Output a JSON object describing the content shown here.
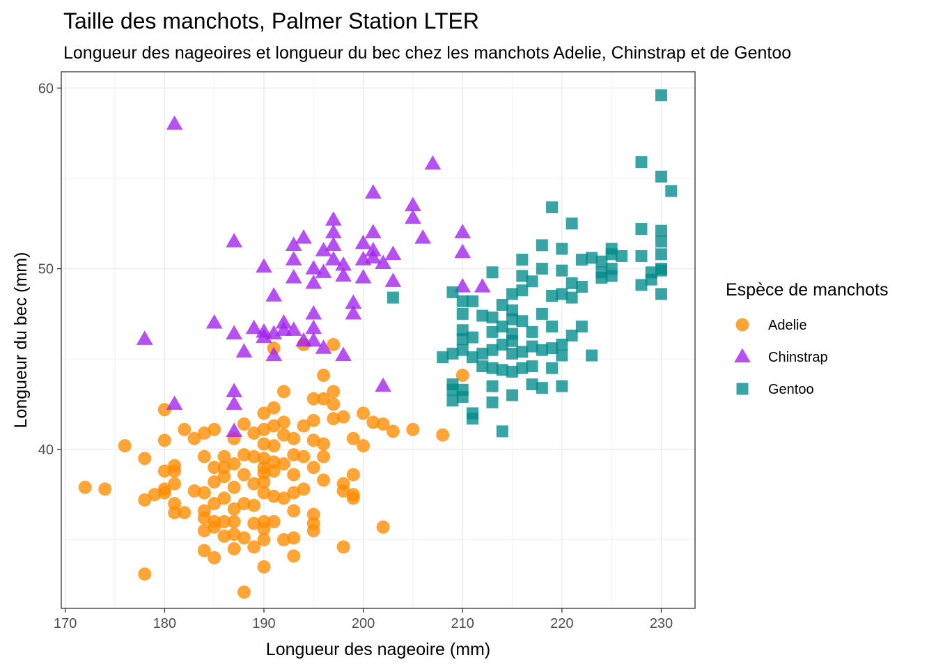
{
  "chart_data": {
    "type": "scatter",
    "title": "Taille des manchots, Palmer Station LTER",
    "subtitle": "Longueur des nageoires et longueur du bec chez les manchots Adelie, Chinstrap et de Gentoo",
    "xlabel": "Longueur des nageoire (mm)",
    "ylabel": "Longueur du bec (mm)",
    "xlim": [
      169.6,
      233.4
    ],
    "ylim": [
      31.2,
      60.9
    ],
    "x_ticks": [
      "170",
      "180",
      "190",
      "200",
      "210",
      "220",
      "230"
    ],
    "y_ticks": [
      "40",
      "50",
      "60"
    ],
    "grid": true,
    "legend": {
      "title": "Espèce de manchots",
      "position": "right"
    },
    "series": [
      {
        "name": "Adelie",
        "color": "#FF8C00",
        "shape": "circle",
        "points": [
          [
            172,
            37.9
          ],
          [
            174,
            37.8
          ],
          [
            176,
            40.2
          ],
          [
            178,
            39.5
          ],
          [
            178,
            37.2
          ],
          [
            178,
            33.1
          ],
          [
            179,
            37.5
          ],
          [
            180,
            42.2
          ],
          [
            180,
            40.5
          ],
          [
            180,
            38.8
          ],
          [
            180,
            37.8
          ],
          [
            180,
            37.6
          ],
          [
            181,
            39.1
          ],
          [
            181,
            38.8
          ],
          [
            181,
            38.1
          ],
          [
            181,
            37.0
          ],
          [
            181,
            36.5
          ],
          [
            182,
            41.1
          ],
          [
            182,
            36.5
          ],
          [
            183,
            40.6
          ],
          [
            183,
            37.7
          ],
          [
            184,
            40.9
          ],
          [
            184,
            39.6
          ],
          [
            184,
            37.6
          ],
          [
            184,
            36.6
          ],
          [
            184,
            36.2
          ],
          [
            184,
            35.5
          ],
          [
            184,
            34.4
          ],
          [
            185,
            41.1
          ],
          [
            185,
            39.0
          ],
          [
            185,
            38.2
          ],
          [
            185,
            37.0
          ],
          [
            185,
            36.0
          ],
          [
            185,
            35.7
          ],
          [
            185,
            34.0
          ],
          [
            186,
            39.6
          ],
          [
            186,
            39.0
          ],
          [
            186,
            38.5
          ],
          [
            186,
            37.3
          ],
          [
            186,
            36.0
          ],
          [
            186,
            35.2
          ],
          [
            187,
            40.6
          ],
          [
            187,
            39.2
          ],
          [
            187,
            37.9
          ],
          [
            187,
            36.7
          ],
          [
            187,
            36.0
          ],
          [
            187,
            35.3
          ],
          [
            187,
            34.5
          ],
          [
            188,
            41.4
          ],
          [
            188,
            39.7
          ],
          [
            188,
            38.6
          ],
          [
            188,
            37.0
          ],
          [
            188,
            35.1
          ],
          [
            188,
            32.1
          ],
          [
            189,
            40.9
          ],
          [
            189,
            39.6
          ],
          [
            189,
            38.1
          ],
          [
            189,
            36.9
          ],
          [
            189,
            35.9
          ],
          [
            189,
            34.6
          ],
          [
            190,
            42.0
          ],
          [
            190,
            41.1
          ],
          [
            190,
            40.3
          ],
          [
            190,
            39.5
          ],
          [
            190,
            39.0
          ],
          [
            190,
            38.7
          ],
          [
            190,
            38.2
          ],
          [
            190,
            37.6
          ],
          [
            190,
            36.0
          ],
          [
            190,
            35.6
          ],
          [
            190,
            35.0
          ],
          [
            190,
            33.5
          ],
          [
            191,
            42.3
          ],
          [
            191,
            41.3
          ],
          [
            191,
            40.2
          ],
          [
            191,
            39.3
          ],
          [
            191,
            38.8
          ],
          [
            191,
            37.4
          ],
          [
            191,
            36.0
          ],
          [
            191,
            45.6
          ],
          [
            192,
            43.2
          ],
          [
            192,
            41.5
          ],
          [
            192,
            40.8
          ],
          [
            192,
            39.2
          ],
          [
            192,
            37.3
          ],
          [
            192,
            35.0
          ],
          [
            193,
            40.6
          ],
          [
            193,
            39.7
          ],
          [
            193,
            38.6
          ],
          [
            193,
            37.6
          ],
          [
            193,
            36.6
          ],
          [
            193,
            35.1
          ],
          [
            193,
            34.1
          ],
          [
            194,
            41.3
          ],
          [
            194,
            39.6
          ],
          [
            194,
            37.8
          ],
          [
            195,
            42.8
          ],
          [
            195,
            41.6
          ],
          [
            195,
            40.5
          ],
          [
            195,
            39.0
          ],
          [
            195,
            36.4
          ],
          [
            195,
            35.5
          ],
          [
            195,
            35.9
          ],
          [
            196,
            42.8
          ],
          [
            196,
            40.3
          ],
          [
            196,
            39.6
          ],
          [
            196,
            38.3
          ],
          [
            197,
            43.2
          ],
          [
            197,
            42.5
          ],
          [
            197,
            41.7
          ],
          [
            197,
            45.8
          ],
          [
            198,
            41.8
          ],
          [
            198,
            38.1
          ],
          [
            198,
            37.7
          ],
          [
            198,
            34.6
          ],
          [
            199,
            40.6
          ],
          [
            199,
            38.6
          ],
          [
            199,
            37.5
          ],
          [
            199,
            37.3
          ],
          [
            200,
            42.0
          ],
          [
            200,
            40.2
          ],
          [
            201,
            41.5
          ],
          [
            202,
            41.4
          ],
          [
            202,
            35.7
          ],
          [
            203,
            41.0
          ],
          [
            205,
            41.1
          ],
          [
            208,
            40.8
          ],
          [
            210,
            44.1
          ],
          [
            196,
            44.1
          ],
          [
            194,
            45.8
          ]
        ]
      },
      {
        "name": "Chinstrap",
        "color": "#A020F0",
        "shape": "triangle",
        "points": [
          [
            178,
            46.1
          ],
          [
            181,
            42.5
          ],
          [
            181,
            58.0
          ],
          [
            185,
            47.0
          ],
          [
            187,
            51.5
          ],
          [
            187,
            46.4
          ],
          [
            187,
            43.2
          ],
          [
            187,
            42.5
          ],
          [
            187,
            41.0
          ],
          [
            188,
            45.4
          ],
          [
            189,
            46.7
          ],
          [
            190,
            50.1
          ],
          [
            190,
            46.5
          ],
          [
            190,
            46.2
          ],
          [
            191,
            48.5
          ],
          [
            191,
            46.4
          ],
          [
            191,
            45.2
          ],
          [
            192,
            47.0
          ],
          [
            192,
            46.6
          ],
          [
            193,
            51.3
          ],
          [
            193,
            50.5
          ],
          [
            193,
            49.5
          ],
          [
            193,
            46.6
          ],
          [
            194,
            51.7
          ],
          [
            194,
            46.0
          ],
          [
            195,
            50.0
          ],
          [
            195,
            49.2
          ],
          [
            195,
            47.5
          ],
          [
            195,
            46.7
          ],
          [
            195,
            46.0
          ],
          [
            196,
            51.0
          ],
          [
            196,
            49.8
          ],
          [
            196,
            45.6
          ],
          [
            197,
            52.7
          ],
          [
            197,
            52.0
          ],
          [
            197,
            51.3
          ],
          [
            197,
            50.5
          ],
          [
            198,
            50.2
          ],
          [
            198,
            49.6
          ],
          [
            198,
            45.2
          ],
          [
            199,
            48.1
          ],
          [
            199,
            47.5
          ],
          [
            200,
            51.4
          ],
          [
            200,
            50.5
          ],
          [
            200,
            49.5
          ],
          [
            201,
            54.2
          ],
          [
            201,
            52.0
          ],
          [
            201,
            51.0
          ],
          [
            201,
            50.6
          ],
          [
            202,
            50.3
          ],
          [
            202,
            43.5
          ],
          [
            203,
            50.8
          ],
          [
            203,
            49.3
          ],
          [
            205,
            53.5
          ],
          [
            205,
            52.8
          ],
          [
            206,
            51.7
          ],
          [
            207,
            55.8
          ],
          [
            210,
            52.0
          ],
          [
            210,
            50.9
          ],
          [
            210,
            49.0
          ],
          [
            212,
            49.0
          ]
        ]
      },
      {
        "name": "Gentoo",
        "color": "#008B8B",
        "shape": "square",
        "points": [
          [
            203,
            48.4
          ],
          [
            208,
            45.1
          ],
          [
            209,
            48.7
          ],
          [
            209,
            45.3
          ],
          [
            209,
            43.6
          ],
          [
            209,
            43.3
          ],
          [
            209,
            42.7
          ],
          [
            210,
            48.2
          ],
          [
            210,
            47.5
          ],
          [
            210,
            46.6
          ],
          [
            210,
            46.1
          ],
          [
            210,
            45.5
          ],
          [
            210,
            43.3
          ],
          [
            210,
            42.9
          ],
          [
            211,
            48.2
          ],
          [
            211,
            46.2
          ],
          [
            211,
            45.1
          ],
          [
            211,
            42.0
          ],
          [
            211,
            41.7
          ],
          [
            212,
            47.4
          ],
          [
            212,
            45.3
          ],
          [
            212,
            44.6
          ],
          [
            213,
            49.8
          ],
          [
            213,
            47.3
          ],
          [
            213,
            46.5
          ],
          [
            213,
            45.5
          ],
          [
            213,
            44.5
          ],
          [
            213,
            43.5
          ],
          [
            213,
            42.6
          ],
          [
            214,
            48.0
          ],
          [
            214,
            46.8
          ],
          [
            214,
            45.8
          ],
          [
            214,
            44.4
          ],
          [
            214,
            41.0
          ],
          [
            215,
            48.6
          ],
          [
            215,
            47.7
          ],
          [
            215,
            47.2
          ],
          [
            215,
            46.4
          ],
          [
            215,
            46.0
          ],
          [
            215,
            45.3
          ],
          [
            215,
            44.3
          ],
          [
            215,
            43.0
          ],
          [
            216,
            50.5
          ],
          [
            216,
            49.6
          ],
          [
            216,
            48.8
          ],
          [
            216,
            47.1
          ],
          [
            216,
            45.4
          ],
          [
            216,
            44.5
          ],
          [
            217,
            49.3
          ],
          [
            217,
            46.5
          ],
          [
            217,
            45.7
          ],
          [
            217,
            44.6
          ],
          [
            217,
            43.6
          ],
          [
            218,
            51.3
          ],
          [
            218,
            50.0
          ],
          [
            218,
            47.5
          ],
          [
            218,
            45.5
          ],
          [
            218,
            43.4
          ],
          [
            219,
            53.4
          ],
          [
            219,
            48.5
          ],
          [
            219,
            46.8
          ],
          [
            219,
            45.6
          ],
          [
            219,
            44.5
          ],
          [
            220,
            51.1
          ],
          [
            220,
            49.9
          ],
          [
            220,
            48.6
          ],
          [
            220,
            45.8
          ],
          [
            220,
            45.2
          ],
          [
            220,
            43.5
          ],
          [
            221,
            52.5
          ],
          [
            221,
            49.2
          ],
          [
            221,
            48.4
          ],
          [
            221,
            46.3
          ],
          [
            222,
            50.5
          ],
          [
            222,
            49.0
          ],
          [
            222,
            46.8
          ],
          [
            223,
            50.6
          ],
          [
            223,
            45.2
          ],
          [
            224,
            50.4
          ],
          [
            224,
            49.5
          ],
          [
            224,
            49.8
          ],
          [
            225,
            51.1
          ],
          [
            225,
            50.8
          ],
          [
            225,
            50.0
          ],
          [
            225,
            49.6
          ],
          [
            226,
            50.7
          ],
          [
            228,
            55.9
          ],
          [
            228,
            52.2
          ],
          [
            228,
            50.7
          ],
          [
            228,
            49.1
          ],
          [
            229,
            49.8
          ],
          [
            229,
            49.4
          ],
          [
            230,
            59.6
          ],
          [
            230,
            55.1
          ],
          [
            230,
            52.1
          ],
          [
            230,
            51.5
          ],
          [
            230,
            50.8
          ],
          [
            230,
            50.0
          ],
          [
            230,
            49.9
          ],
          [
            230,
            48.6
          ],
          [
            231,
            54.3
          ]
        ]
      }
    ]
  }
}
